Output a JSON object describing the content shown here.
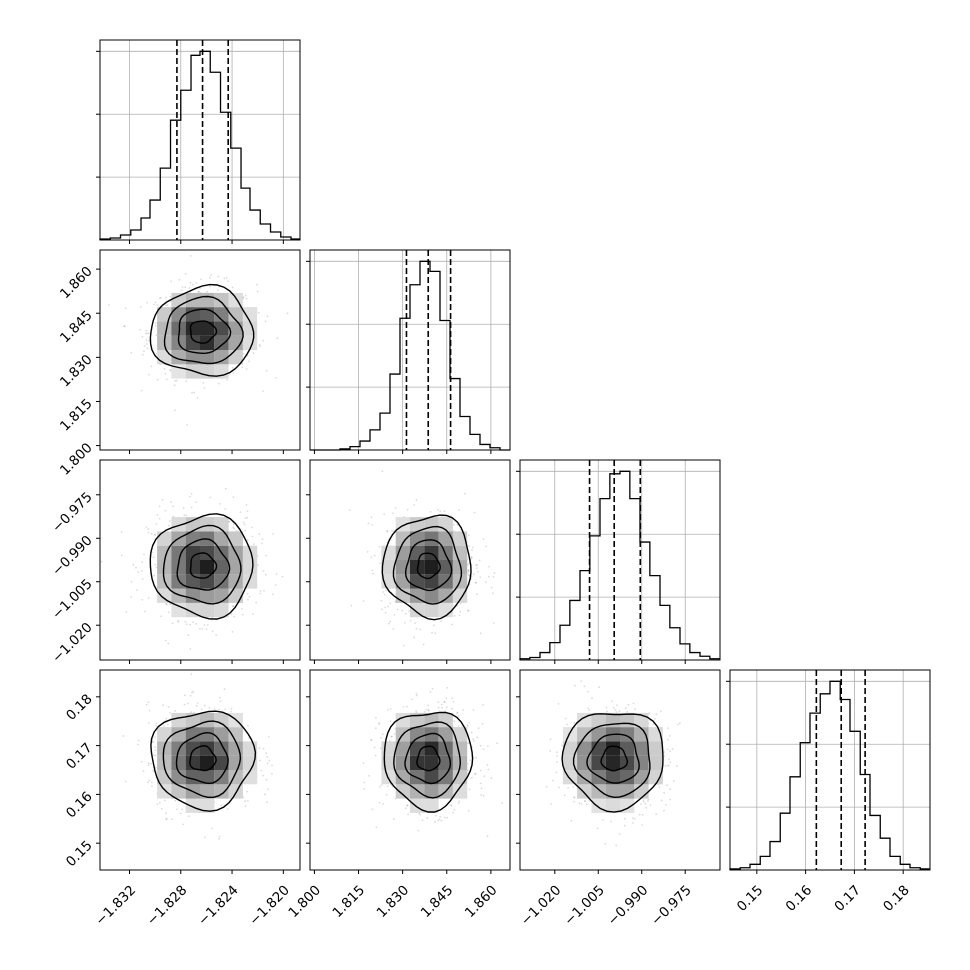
{
  "chart_data": {
    "type": "corner",
    "params": [
      {
        "range": [
          -1.8343,
          -1.8187
        ],
        "ticks": [
          -1.832,
          -1.828,
          -1.824,
          -1.82
        ],
        "tick_labels": [
          "−1.832",
          "−1.828",
          "−1.824",
          "−1.820"
        ],
        "median": -1.8263,
        "q16": -1.8283,
        "q84": -1.8243,
        "sigma": 0.002
      },
      {
        "range": [
          1.7985,
          1.8665
        ],
        "ticks": [
          1.8,
          1.815,
          1.83,
          1.845,
          1.86
        ],
        "tick_labels": [
          "1.800",
          "1.815",
          "1.830",
          "1.845",
          "1.860"
        ],
        "median": 1.8387,
        "q16": 1.8313,
        "q84": 1.8463,
        "sigma": 0.0075
      },
      {
        "range": [
          -1.032,
          -0.963
        ],
        "ticks": [
          -1.02,
          -1.005,
          -0.99,
          -0.975
        ],
        "tick_labels": [
          "−1.020",
          "−1.005",
          "−0.990",
          "−0.975"
        ],
        "median": -0.9995,
        "q16": -1.008,
        "q84": -0.9905,
        "sigma": 0.0087
      },
      {
        "range": [
          0.1445,
          0.1855
        ],
        "ticks": [
          0.15,
          0.16,
          0.17,
          0.18
        ],
        "tick_labels": [
          "0.15",
          "0.16",
          "0.17",
          "0.18"
        ],
        "median": 0.1673,
        "q16": 0.1622,
        "q84": 0.1722,
        "sigma": 0.005
      }
    ],
    "histograms": [
      {
        "bin_edges": [
          -1.8343,
          -1.8335,
          -1.8327,
          -1.8319,
          -1.8311,
          -1.8304,
          -1.8296,
          -1.8288,
          -1.828,
          -1.8272,
          -1.8265,
          -1.8257,
          -1.8249,
          -1.8241,
          -1.8233,
          -1.8226,
          -1.8218,
          -1.821,
          -1.8202,
          -1.8194,
          -1.8187
        ],
        "counts": [
          1,
          2,
          5,
          10,
          22,
          40,
          72,
          120,
          150,
          185,
          189,
          168,
          128,
          92,
          52,
          30,
          16,
          8,
          3,
          1
        ]
      },
      {
        "bin_edges": [
          1.7985,
          1.8019,
          1.8053,
          1.8087,
          1.8121,
          1.8155,
          1.8189,
          1.8223,
          1.8257,
          1.8291,
          1.8325,
          1.8359,
          1.8393,
          1.8427,
          1.8461,
          1.8495,
          1.8529,
          1.8563,
          1.8597,
          1.8631,
          1.8665
        ],
        "counts": [
          0,
          0,
          0,
          1,
          3,
          8,
          18,
          33,
          68,
          118,
          148,
          169,
          160,
          116,
          64,
          30,
          14,
          5,
          2,
          0
        ]
      },
      {
        "bin_edges": [
          -1.032,
          -1.0286,
          -1.0251,
          -1.0217,
          -1.0182,
          -1.0148,
          -1.0113,
          -1.0079,
          -1.0044,
          -1.001,
          -0.9975,
          -0.9941,
          -0.9906,
          -0.9872,
          -0.9837,
          -0.9803,
          -0.9768,
          -0.9734,
          -0.9699,
          -0.9665,
          -0.963
        ],
        "counts": [
          1,
          2,
          6,
          14,
          28,
          48,
          72,
          100,
          130,
          150,
          152,
          130,
          95,
          68,
          44,
          26,
          13,
          6,
          3,
          1
        ]
      },
      {
        "bin_edges": [
          0.1445,
          0.1466,
          0.1486,
          0.1507,
          0.1527,
          0.1548,
          0.1568,
          0.1589,
          0.1609,
          0.163,
          0.165,
          0.1671,
          0.1691,
          0.1712,
          0.1732,
          0.1753,
          0.1773,
          0.1794,
          0.1814,
          0.1835,
          0.1855
        ],
        "counts": [
          1,
          2,
          5,
          12,
          25,
          50,
          82,
          112,
          138,
          155,
          166,
          150,
          122,
          84,
          48,
          28,
          12,
          5,
          2,
          1
        ]
      }
    ]
  }
}
